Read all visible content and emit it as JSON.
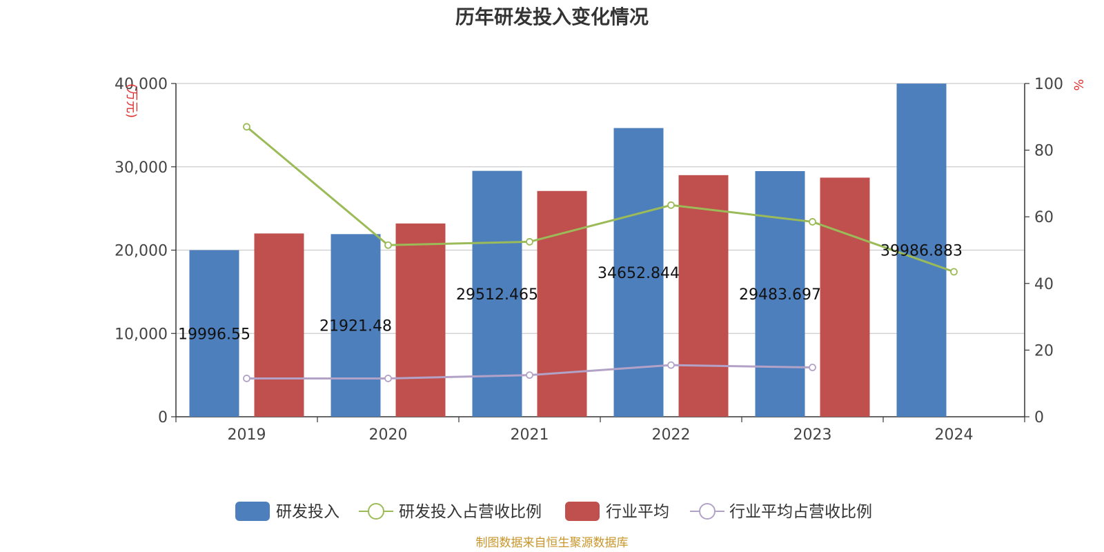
{
  "chart_data": {
    "type": "bar",
    "title": "历年研发投入变化情况",
    "categories": [
      "2019",
      "2020",
      "2021",
      "2022",
      "2023",
      "2024"
    ],
    "y_left": {
      "unit": "(万元)",
      "ylim": [
        0,
        40000
      ],
      "ticks": [
        "0",
        "10,000",
        "20,000",
        "30,000",
        "40,000"
      ],
      "tick_values": [
        0,
        10000,
        20000,
        30000,
        40000
      ]
    },
    "y_right": {
      "unit": "%",
      "ylim": [
        0,
        100
      ],
      "ticks": [
        "0",
        "20",
        "40",
        "60",
        "80",
        "100"
      ],
      "tick_values": [
        0,
        20,
        40,
        60,
        80,
        100
      ]
    },
    "grid": true,
    "legend_position": "bottom",
    "series": [
      {
        "name": "研发投入",
        "kind": "bar",
        "axis": "left",
        "color": "#4e7fbd",
        "values": [
          19996.55,
          21921.48,
          29512.465,
          34652.844,
          29483.697,
          39986.883
        ],
        "labels": [
          "19996.55",
          "21921.48",
          "29512.465",
          "34652.844",
          "29483.697",
          "39986.883"
        ]
      },
      {
        "name": "研发投入占营收比例",
        "kind": "line",
        "axis": "right",
        "color": "#9bbb59",
        "values": [
          87,
          51.5,
          52.5,
          63.5,
          58.5,
          43.5
        ]
      },
      {
        "name": "行业平均",
        "kind": "bar",
        "axis": "left",
        "color": "#c0504d",
        "values": [
          22000,
          23200,
          27100,
          29000,
          28700,
          null
        ]
      },
      {
        "name": "行业平均占营收比例",
        "kind": "line",
        "axis": "right",
        "color": "#b3a2c7",
        "values": [
          11.5,
          11.5,
          12.5,
          15.5,
          14.8,
          null
        ]
      }
    ]
  },
  "footer": {
    "source": "制图数据来自恒生聚源数据库"
  }
}
